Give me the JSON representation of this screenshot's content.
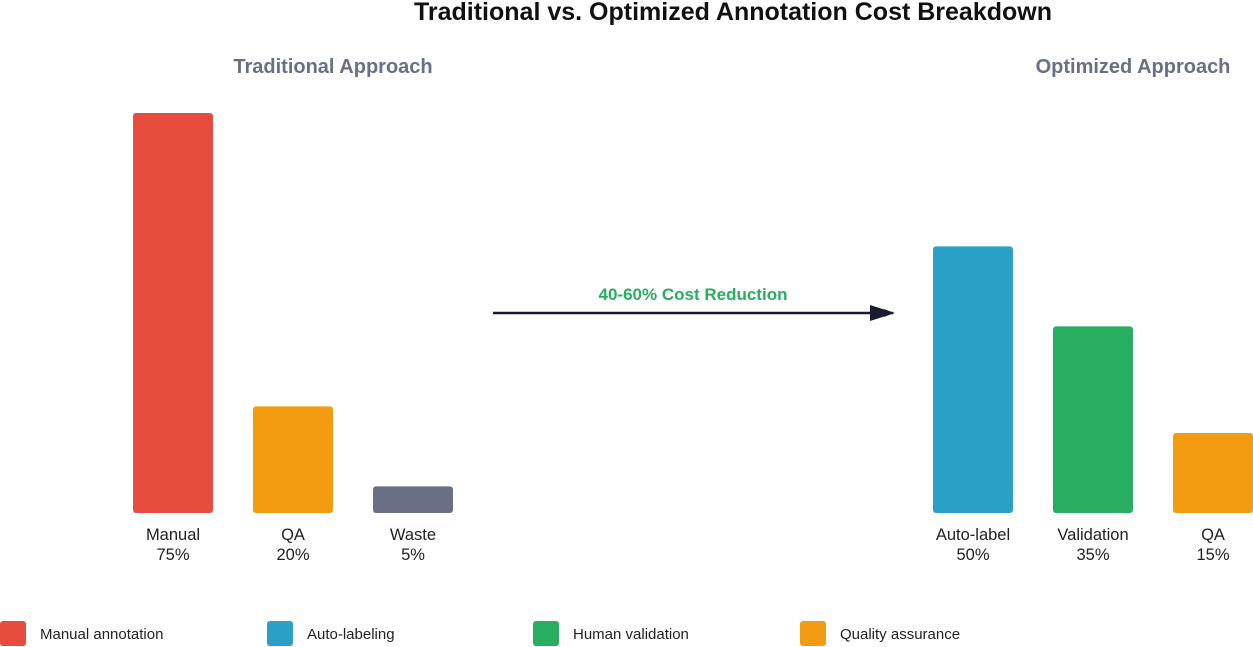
{
  "chart_data": {
    "type": "bar",
    "title": "Traditional vs. Optimized Annotation Cost Breakdown",
    "arrow_label": "40-60% Cost Reduction",
    "panels": [
      {
        "name": "Traditional Approach",
        "categories": [
          "Manual",
          "QA",
          "Waste"
        ],
        "value_labels": [
          "75%",
          "20%",
          "5%"
        ],
        "values": [
          75,
          20,
          5
        ],
        "colors": [
          "#e74c3c",
          "#f39c12",
          "#6b6f86"
        ]
      },
      {
        "name": "Optimized Approach",
        "categories": [
          "Auto-label",
          "Validation",
          "QA"
        ],
        "value_labels": [
          "50%",
          "35%",
          "15%"
        ],
        "values": [
          50,
          35,
          15
        ],
        "colors": [
          "#2aa0c6",
          "#27ae60",
          "#f39c12"
        ]
      }
    ],
    "ylim": [
      0,
      75
    ],
    "legend": [
      {
        "label": "Manual annotation",
        "color": "#e74c3c"
      },
      {
        "label": "Auto-labeling",
        "color": "#2aa0c6"
      },
      {
        "label": "Human validation",
        "color": "#27ae60"
      },
      {
        "label": "Quality assurance",
        "color": "#f39c12"
      }
    ]
  }
}
